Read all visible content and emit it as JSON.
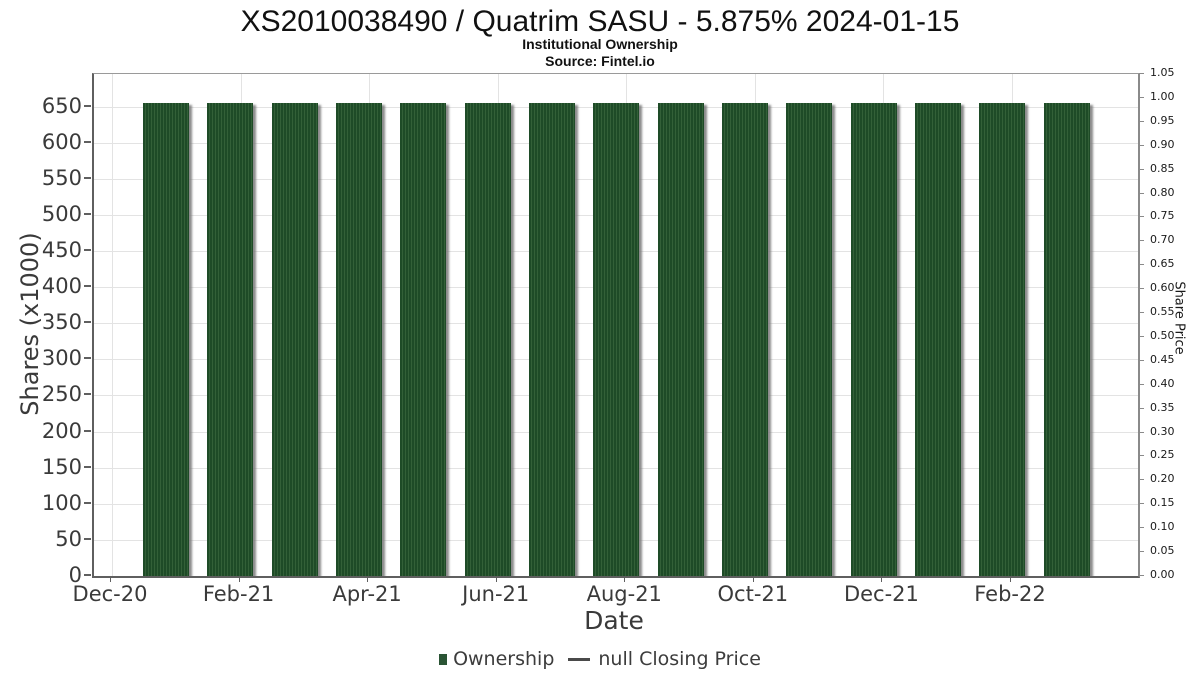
{
  "chart_data": {
    "type": "bar",
    "title": "XS2010038490 / Quatrim SASU - 5.875% 2024-01-15",
    "subtitle": "Institutional Ownership",
    "source": "Source: Fintel.io",
    "xlabel": "Date",
    "ylabel_left": "Shares (x1000)",
    "ylabel_right": "Share Price",
    "categories": [
      "Jan-21",
      "Feb-21",
      "Mar-21",
      "Apr-21",
      "May-21",
      "Jun-21",
      "Jul-21",
      "Aug-21",
      "Sep-21",
      "Oct-21",
      "Nov-21",
      "Dec-21",
      "Jan-22",
      "Feb-22",
      "Mar-22"
    ],
    "series": [
      {
        "name": "Ownership",
        "type": "bar",
        "values": [
          655,
          655,
          655,
          655,
          655,
          655,
          655,
          655,
          655,
          655,
          655,
          655,
          655,
          655,
          655
        ]
      },
      {
        "name": "null Closing Price",
        "type": "line",
        "values": []
      }
    ],
    "x_tick_labels": [
      "Dec-20",
      "Feb-21",
      "Apr-21",
      "Jun-21",
      "Aug-21",
      "Oct-21",
      "Dec-21",
      "Feb-22"
    ],
    "y_ticks_left": [
      0,
      50,
      100,
      150,
      200,
      250,
      300,
      350,
      400,
      450,
      500,
      550,
      600,
      650
    ],
    "y_ticks_right": [
      "0.00",
      "0.05",
      "0.10",
      "0.15",
      "0.20",
      "0.25",
      "0.30",
      "0.35",
      "0.40",
      "0.45",
      "0.50",
      "0.55",
      "0.60",
      "0.65",
      "0.70",
      "0.75",
      "0.80",
      "0.85",
      "0.90",
      "0.95",
      "1.00",
      "1.05"
    ],
    "ylim_left": [
      0,
      695
    ],
    "ylim_right": [
      0,
      1.05
    ],
    "grid": true,
    "legend_position": "bottom",
    "colors": {
      "bar": "#1e4b27",
      "bar_stripe": "#336038",
      "bar_shadow": "#9b9b9b",
      "legend_bar_swatch": "#2a5434",
      "legend_line_swatch": "#4a4a4a",
      "grid": "#e3e3e3",
      "axis_text": "#3a3a3a",
      "title_text": "#111111"
    }
  }
}
